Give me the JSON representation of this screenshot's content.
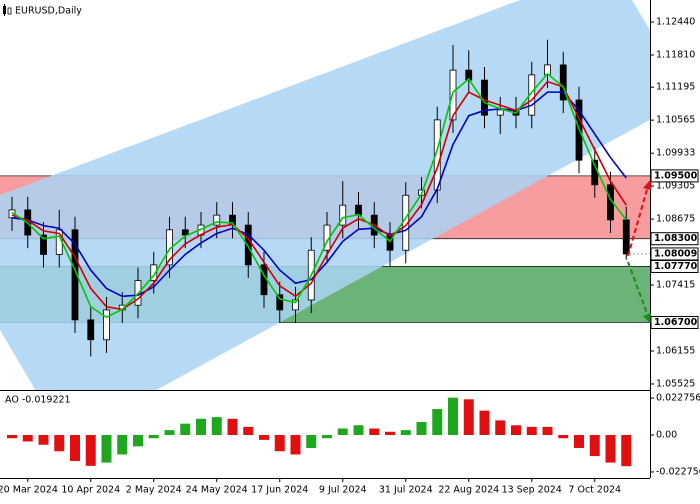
{
  "chart_data": {
    "type": "candlestick",
    "title": "EURUSD,Daily",
    "categories": [
      null,
      "20 Mar 2024",
      null,
      null,
      null,
      "10 Apr 2024",
      null,
      null,
      null,
      "2 May 2024",
      null,
      null,
      null,
      "24 May 2024",
      null,
      null,
      null,
      "17 Jun 2024",
      null,
      null,
      null,
      "9 Jul 2024",
      null,
      null,
      null,
      "31 Jul 2024",
      null,
      null,
      null,
      "22 Aug 2024",
      null,
      null,
      null,
      "13 Sep 2024",
      null,
      null,
      null,
      "7 Oct 2024",
      null,
      null
    ],
    "open": [
      1.087,
      1.0885,
      1.0837,
      1.08,
      1.0847,
      1.0675,
      1.0637,
      1.0694,
      1.0703,
      1.075,
      1.078,
      1.0847,
      1.0837,
      1.0856,
      1.0875,
      1.0856,
      1.078,
      1.0723,
      1.0694,
      1.0713,
      1.0808,
      1.0856,
      1.0894,
      1.0875,
      1.0837,
      1.0808,
      1.0913,
      1.0923,
      1.1057,
      1.1152,
      1.1133,
      1.1066,
      1.1076,
      1.1066,
      1.1143,
      1.1162,
      1.1095,
      1.098,
      1.0933,
      1.0866
    ],
    "high": [
      1.091,
      1.091,
      1.0862,
      1.0885,
      1.0872,
      1.07,
      1.0719,
      1.0728,
      1.0775,
      1.0805,
      1.0872,
      1.0872,
      1.0881,
      1.09,
      1.09,
      1.0881,
      1.0805,
      1.0748,
      1.0738,
      1.0833,
      1.0881,
      1.094,
      1.0919,
      1.09,
      1.0862,
      1.0938,
      1.0948,
      1.1082,
      1.12,
      1.119,
      1.1158,
      1.1101,
      1.1101,
      1.1168,
      1.121,
      1.1187,
      1.112,
      1.1005,
      1.0958,
      1.0891
    ],
    "low": [
      1.0845,
      1.0812,
      1.0775,
      1.0775,
      1.065,
      1.0605,
      1.0612,
      1.0669,
      1.0678,
      1.0725,
      1.0755,
      1.0812,
      1.0812,
      1.0831,
      1.0831,
      1.0755,
      1.0698,
      1.0669,
      1.0669,
      1.0688,
      1.0783,
      1.0831,
      1.085,
      1.0812,
      1.0777,
      1.0783,
      1.0888,
      1.0898,
      1.1032,
      1.1108,
      1.1041,
      1.103,
      1.1041,
      1.1041,
      1.1118,
      1.107,
      1.0955,
      1.0908,
      1.0841,
      1.079
    ],
    "close": [
      1.0885,
      1.0837,
      1.08,
      1.0847,
      1.0675,
      1.0637,
      1.0694,
      1.0703,
      1.075,
      1.078,
      1.0847,
      1.0837,
      1.0856,
      1.0875,
      1.0856,
      1.078,
      1.0723,
      1.0694,
      1.0713,
      1.0808,
      1.0856,
      1.0894,
      1.0875,
      1.0837,
      1.0808,
      1.0913,
      1.0923,
      1.1057,
      1.1152,
      1.1133,
      1.1066,
      1.1076,
      1.1066,
      1.1143,
      1.1162,
      1.1095,
      1.098,
      1.0933,
      1.0866,
      1.08009
    ],
    "series": [
      {
        "color": "#0000c8",
        "values": [
          1.087,
          1.0866,
          1.0855,
          1.085,
          1.082,
          1.077,
          1.0735,
          1.072,
          1.0722,
          1.0738,
          1.077,
          1.08,
          1.0822,
          1.084,
          1.085,
          1.0838,
          1.0808,
          1.077,
          1.0745,
          1.0752,
          1.0785,
          1.0825,
          1.0848,
          1.085,
          1.0838,
          1.0846,
          1.0872,
          1.0925,
          1.101,
          1.1065,
          1.1075,
          1.1078,
          1.1075,
          1.1085,
          1.111,
          1.111,
          1.1075,
          1.103,
          1.0985,
          1.0946
        ]
      },
      {
        "color": "#d00000",
        "values": [
          1.0875,
          1.0865,
          1.0845,
          1.084,
          1.0795,
          1.0735,
          1.07,
          1.0695,
          1.0715,
          1.0745,
          1.079,
          1.082,
          1.0838,
          1.0852,
          1.0857,
          1.083,
          1.0785,
          1.074,
          1.072,
          1.0745,
          1.08,
          1.085,
          1.0868,
          1.0856,
          1.0835,
          1.0855,
          1.0895,
          1.0965,
          1.1065,
          1.111,
          1.1095,
          1.1085,
          1.1075,
          1.1095,
          1.113,
          1.112,
          1.106,
          1.1,
          1.094,
          1.0894
        ]
      },
      {
        "color": "#00c800",
        "values": [
          1.088,
          1.086,
          1.083,
          1.0835,
          1.077,
          1.07,
          1.068,
          1.0695,
          1.0725,
          1.076,
          1.081,
          1.0835,
          1.0848,
          1.0862,
          1.086,
          1.0815,
          1.076,
          1.0715,
          1.0708,
          1.076,
          1.0825,
          1.087,
          1.0876,
          1.085,
          1.0825,
          1.087,
          1.0915,
          1.1,
          1.111,
          1.1135,
          1.109,
          1.1078,
          1.107,
          1.111,
          1.1145,
          1.112,
          1.104,
          1.097,
          1.0905,
          1.0866
        ]
      }
    ],
    "ylim": [
      1.0541,
      1.1286
    ],
    "yticks": [
      {
        "value": 1.1244,
        "label": "1.12440"
      },
      {
        "value": 1.1181,
        "label": "1.11810"
      },
      1.11195,
      1.10565,
      1.09933,
      1.09305,
      1.08675,
      1.07415,
      1.06155,
      1.05525
    ],
    "zones": [
      {
        "color": "#f47c80",
        "top": {
          "value": 1.095,
          "label": "1.09500"
        },
        "bottom": {
          "value": 1.083,
          "label": "1.08300"
        }
      },
      {
        "color": "#3a9a4a",
        "top": {
          "value": 1.0777,
          "label": "1.07770"
        },
        "bottom": {
          "value": 1.067,
          "label": "1.06700"
        }
      }
    ],
    "current": {
      "value": 1.08009,
      "label": "1.08009"
    },
    "oscillator": {
      "title": "AO -0.019221",
      "up_color": "#1fa81f",
      "down_color": "#e01010",
      "values": [
        -0.002,
        -0.004,
        -0.006,
        -0.01,
        -0.016,
        -0.019,
        -0.017,
        -0.012,
        -0.007,
        -0.002,
        0.003,
        0.007,
        0.01,
        0.011,
        0.01,
        0.005,
        -0.003,
        -0.01,
        -0.012,
        -0.008,
        -0.002,
        0.004,
        0.006,
        0.004,
        0.002,
        0.003,
        0.008,
        0.016,
        0.023,
        0.022,
        0.015,
        0.009,
        0.006,
        0.005,
        0.005,
        -0.002,
        -0.008,
        -0.013,
        -0.017,
        -0.019221
      ],
      "ylim": [
        -0.0265,
        0.0265
      ],
      "yticks": [
        0.022756,
        {
          "value": 0,
          "label": "0.00"
        },
        -0.022756
      ]
    }
  }
}
